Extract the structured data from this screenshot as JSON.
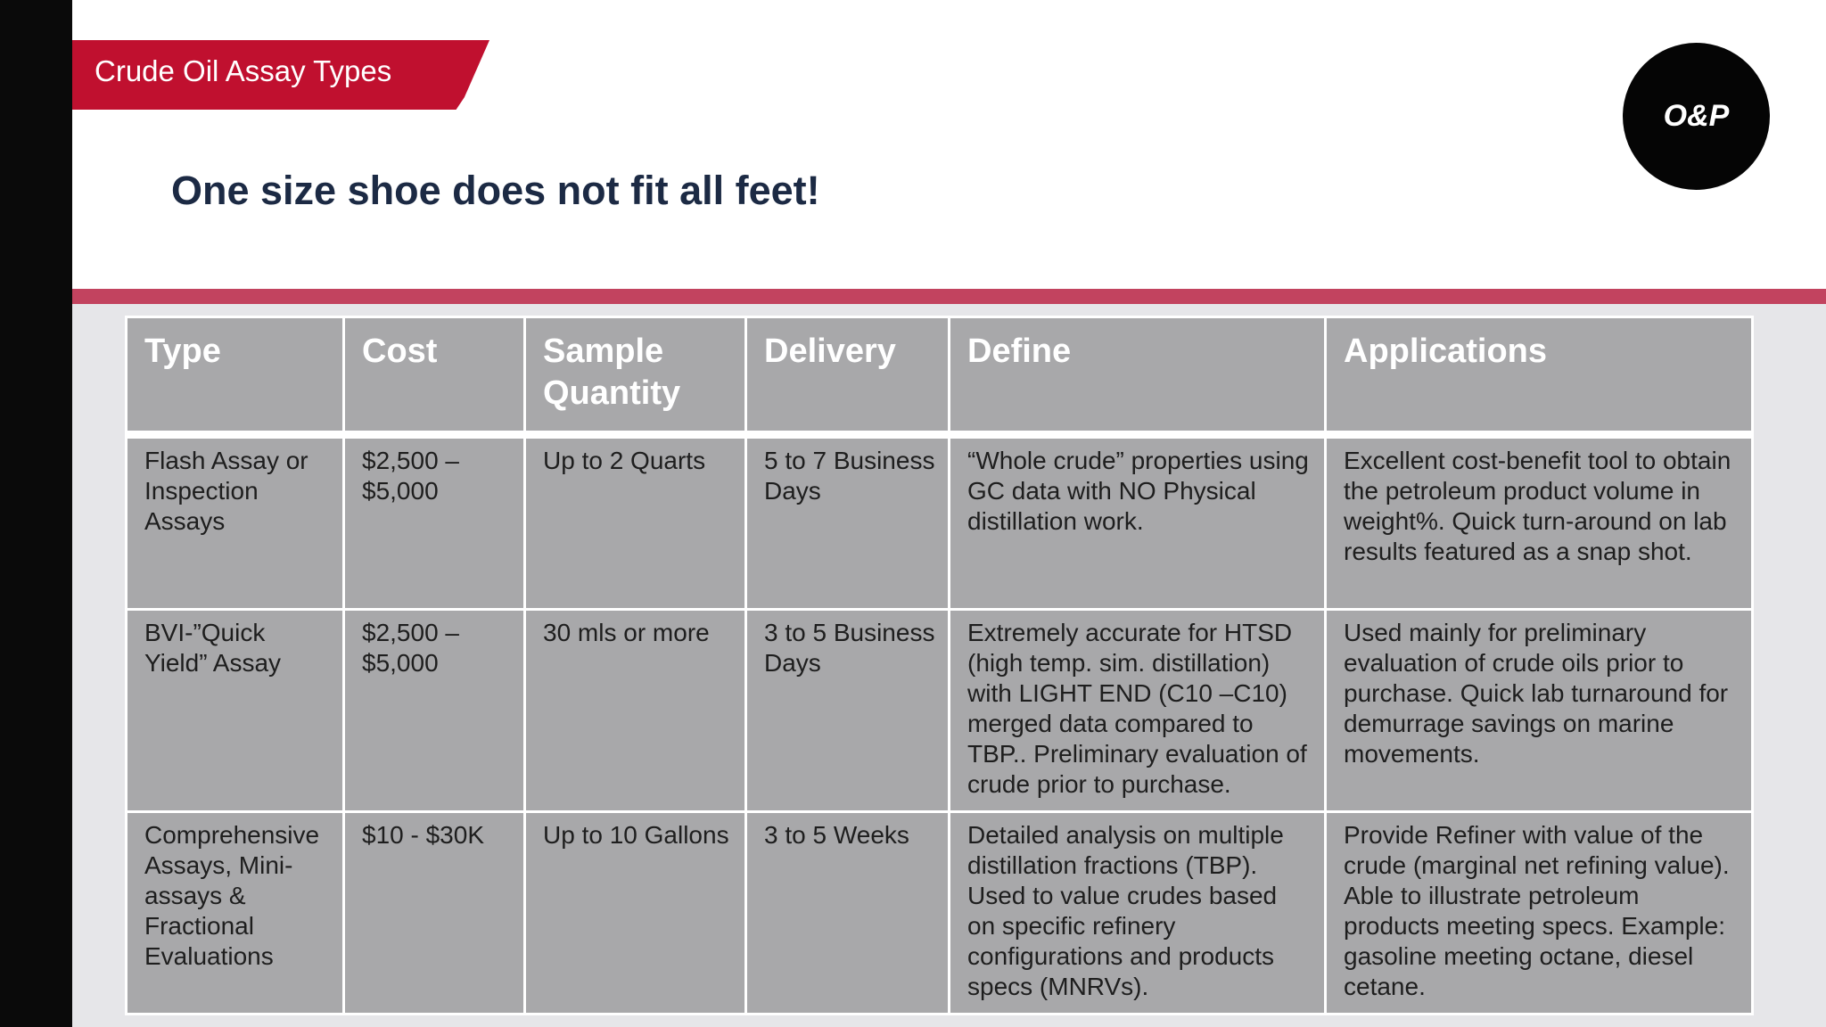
{
  "slide": {
    "section_title": "Crude Oil Assay Types",
    "headline": "One size shoe does not fit all feet!",
    "logo_text": "O&P"
  },
  "colors": {
    "accent_red": "#c0102f",
    "divider": "#c2435f",
    "headline": "#1c2a44",
    "table_cell": "#a8a8aa"
  },
  "table": {
    "headers": [
      "Type",
      "Cost",
      "Sample Quantity",
      "Delivery",
      "Define",
      "Applications"
    ],
    "rows": [
      [
        "Flash Assay or Inspection Assays",
        "$2,500 – $5,000",
        "Up to 2 Quarts",
        "5 to 7 Business Days",
        "“Whole crude” properties using GC data with NO Physical distillation work.",
        "Excellent cost-benefit tool to obtain the petroleum product volume in weight%.  Quick turn-around on lab results featured as a snap shot."
      ],
      [
        "BVI-”Quick Yield” Assay",
        "$2,500 – $5,000",
        "30 mls or more",
        "3 to 5 Business Days",
        "Extremely accurate for HTSD (high temp. sim. distillation) with LIGHT END (C10 –C10) merged data compared to TBP.. Preliminary evaluation of crude prior to purchase.",
        "Used mainly for preliminary evaluation of crude oils prior to purchase.  Quick lab turnaround for demurrage savings on marine movements."
      ],
      [
        "Comprehensive Assays, Mini-assays  & Fractional Evaluations",
        "$10 - $30K",
        "Up to 10 Gallons",
        "3 to 5 Weeks",
        "Detailed analysis on multiple distillation fractions (TBP). Used to value crudes based on specific refinery configurations and products specs (MNRVs).",
        "Provide Refiner with value of the crude (marginal net refining value).  Able to illustrate petroleum products meeting specs. Example: gasoline meeting octane, diesel cetane."
      ]
    ]
  }
}
